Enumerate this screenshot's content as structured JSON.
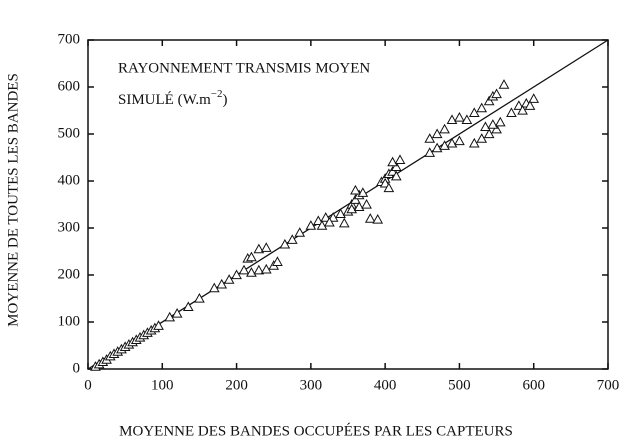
{
  "chart_data": {
    "type": "scatter",
    "annotation": {
      "line1": "RAYONNEMENT TRANSMIS MOYEN",
      "line2": "SIMULÉ  (W.m",
      "line2_sup": "−2",
      "line2_end": ")"
    },
    "x_label": "MOYENNE DES BANDES OCCUPÉES PAR LES CAPTEURS",
    "y_label": "MOYENNE  DE TOUTES LES BANDES",
    "xlim": [
      0,
      700
    ],
    "ylim": [
      0,
      700
    ],
    "xticks": [
      0,
      100,
      200,
      300,
      400,
      500,
      600,
      700
    ],
    "yticks": [
      0,
      100,
      200,
      300,
      400,
      500,
      600,
      700
    ],
    "color": "#111111",
    "x": [
      10,
      15,
      20,
      25,
      30,
      35,
      40,
      45,
      50,
      55,
      60,
      65,
      70,
      75,
      80,
      85,
      90,
      95,
      110,
      120,
      135,
      150,
      170,
      180,
      190,
      200,
      210,
      215,
      220,
      230,
      240,
      220,
      230,
      240,
      250,
      255,
      265,
      275,
      285,
      300,
      310,
      320,
      330,
      340,
      315,
      325,
      345,
      350,
      355,
      360,
      365,
      370,
      360,
      355,
      365,
      375,
      380,
      390,
      395,
      400,
      405,
      410,
      415,
      410,
      420,
      400,
      415,
      405,
      460,
      470,
      480,
      490,
      500,
      460,
      470,
      480,
      490,
      500,
      510,
      520,
      530,
      540,
      545,
      550,
      560,
      520,
      530,
      540,
      550,
      535,
      545,
      555,
      570,
      580,
      590,
      600,
      595,
      585
    ],
    "values": [
      5,
      10,
      15,
      20,
      27,
      32,
      37,
      42,
      47,
      52,
      57,
      62,
      67,
      72,
      77,
      82,
      87,
      92,
      110,
      118,
      132,
      150,
      172,
      180,
      190,
      200,
      210,
      235,
      238,
      255,
      258,
      205,
      210,
      212,
      220,
      228,
      265,
      275,
      290,
      305,
      315,
      322,
      322,
      330,
      305,
      312,
      310,
      335,
      350,
      360,
      370,
      375,
      380,
      340,
      345,
      350,
      320,
      318,
      398,
      405,
      415,
      420,
      430,
      440,
      445,
      395,
      410,
      385,
      460,
      470,
      475,
      480,
      485,
      490,
      500,
      510,
      530,
      535,
      530,
      545,
      555,
      570,
      580,
      585,
      605,
      480,
      490,
      500,
      510,
      515,
      520,
      525,
      545,
      560,
      565,
      575,
      560,
      550
    ]
  }
}
